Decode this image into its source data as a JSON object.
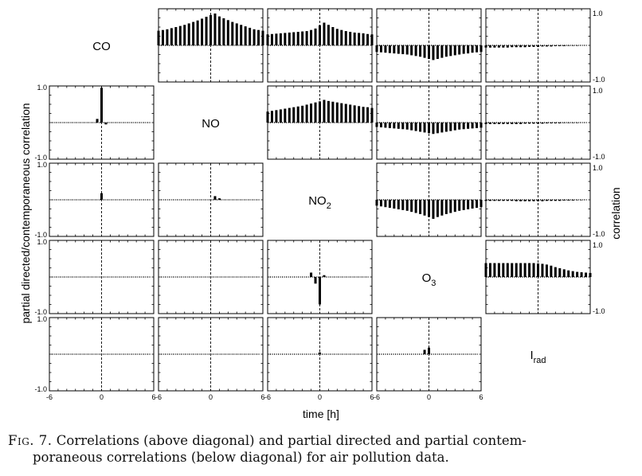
{
  "chart_data": {
    "type": "bar",
    "layout": "5x5 matrix",
    "variables": [
      "CO",
      "NO",
      "NO2",
      "O3",
      "Irad"
    ],
    "xlabel": "time [h]",
    "ylabel_left": "partial directed/contemporaneous correlation",
    "ylabel_right": "correlation",
    "xlim": [
      -6,
      6
    ],
    "ylim": [
      -1.0,
      1.0
    ],
    "x_tick_labels": [
      "-6",
      "0",
      "6"
    ],
    "y_tick_labels": [
      "1.0",
      "-1.0"
    ],
    "upper_panels": [
      {
        "row": 0,
        "col": 1,
        "values": [
          0.4,
          0.42,
          0.44,
          0.47,
          0.5,
          0.53,
          0.56,
          0.6,
          0.64,
          0.68,
          0.73,
          0.78,
          0.83,
          0.87,
          0.79,
          0.74,
          0.69,
          0.64,
          0.6,
          0.56,
          0.52,
          0.48,
          0.44,
          0.42,
          0.4
        ]
      },
      {
        "row": 0,
        "col": 2,
        "values": [
          0.3,
          0.31,
          0.32,
          0.33,
          0.34,
          0.35,
          0.36,
          0.37,
          0.38,
          0.39,
          0.42,
          0.46,
          0.55,
          0.62,
          0.56,
          0.5,
          0.45,
          0.42,
          0.39,
          0.37,
          0.35,
          0.34,
          0.33,
          0.31,
          0.3
        ]
      },
      {
        "row": 0,
        "col": 3,
        "values": [
          -0.18,
          -0.19,
          -0.2,
          -0.21,
          -0.22,
          -0.23,
          -0.24,
          -0.25,
          -0.27,
          -0.29,
          -0.31,
          -0.34,
          -0.37,
          -0.4,
          -0.37,
          -0.34,
          -0.31,
          -0.29,
          -0.27,
          -0.25,
          -0.23,
          -0.22,
          -0.2,
          -0.19,
          -0.18
        ]
      },
      {
        "row": 0,
        "col": 4,
        "values": [
          -0.06,
          -0.06,
          -0.06,
          -0.06,
          -0.06,
          -0.06,
          -0.05,
          -0.05,
          -0.05,
          -0.05,
          -0.04,
          -0.04,
          -0.04,
          -0.03,
          -0.03,
          -0.03,
          -0.02,
          -0.02,
          -0.02,
          -0.01,
          -0.01,
          -0.01,
          0,
          0,
          0
        ]
      },
      {
        "row": 1,
        "col": 2,
        "values": [
          0.3,
          0.32,
          0.34,
          0.36,
          0.38,
          0.4,
          0.42,
          0.44,
          0.46,
          0.49,
          0.52,
          0.55,
          0.58,
          0.62,
          0.59,
          0.57,
          0.55,
          0.53,
          0.51,
          0.49,
          0.47,
          0.45,
          0.43,
          0.42,
          0.4
        ]
      },
      {
        "row": 1,
        "col": 3,
        "values": [
          -0.12,
          -0.13,
          -0.14,
          -0.15,
          -0.16,
          -0.17,
          -0.18,
          -0.19,
          -0.21,
          -0.23,
          -0.25,
          -0.27,
          -0.29,
          -0.31,
          -0.29,
          -0.27,
          -0.25,
          -0.23,
          -0.21,
          -0.19,
          -0.18,
          -0.17,
          -0.16,
          -0.15,
          -0.14
        ]
      },
      {
        "row": 1,
        "col": 4,
        "values": [
          -0.04,
          -0.04,
          -0.04,
          -0.04,
          -0.04,
          -0.04,
          -0.04,
          -0.04,
          -0.04,
          -0.03,
          -0.03,
          -0.03,
          -0.03,
          -0.03,
          -0.02,
          -0.02,
          -0.02,
          -0.02,
          -0.01,
          -0.01,
          -0.01,
          -0.01,
          0,
          0,
          0
        ]
      },
      {
        "row": 2,
        "col": 3,
        "values": [
          -0.16,
          -0.18,
          -0.2,
          -0.22,
          -0.24,
          -0.26,
          -0.28,
          -0.3,
          -0.33,
          -0.36,
          -0.39,
          -0.43,
          -0.47,
          -0.52,
          -0.47,
          -0.43,
          -0.39,
          -0.36,
          -0.33,
          -0.3,
          -0.28,
          -0.26,
          -0.24,
          -0.22,
          -0.2
        ]
      },
      {
        "row": 2,
        "col": 4,
        "values": [
          -0.03,
          -0.03,
          -0.03,
          -0.03,
          -0.03,
          -0.03,
          -0.03,
          -0.04,
          -0.04,
          -0.04,
          -0.04,
          -0.04,
          -0.04,
          -0.04,
          -0.03,
          -0.03,
          -0.03,
          -0.03,
          -0.02,
          -0.02,
          -0.02,
          -0.01,
          -0.01,
          0,
          0
        ]
      },
      {
        "row": 3,
        "col": 4,
        "values": [
          0.38,
          0.38,
          0.38,
          0.38,
          0.38,
          0.38,
          0.38,
          0.38,
          0.38,
          0.38,
          0.38,
          0.38,
          0.37,
          0.36,
          0.34,
          0.31,
          0.27,
          0.24,
          0.21,
          0.18,
          0.16,
          0.14,
          0.13,
          0.12,
          0.11
        ]
      }
    ],
    "lower_panels": [
      {
        "row": 1,
        "col": 0,
        "values": [
          0,
          0,
          0,
          0,
          0,
          0,
          0,
          0,
          0,
          0,
          0,
          0.1,
          0.95,
          -0.05,
          0,
          0,
          0,
          0,
          0,
          0,
          0,
          0,
          0,
          0,
          0
        ]
      },
      {
        "row": 2,
        "col": 0,
        "values": [
          0,
          0,
          0,
          0,
          0,
          0,
          0,
          0,
          0,
          0,
          0,
          0,
          0.18,
          0,
          0,
          0,
          0,
          0,
          0,
          0,
          0,
          0,
          0,
          0,
          0
        ]
      },
      {
        "row": 2,
        "col": 1,
        "values": [
          0,
          0,
          0,
          0,
          0,
          0,
          0,
          0,
          0,
          0,
          0,
          0,
          0,
          0.1,
          0.04,
          0,
          0,
          0,
          0,
          0,
          0,
          0,
          0,
          0,
          0
        ]
      },
      {
        "row": 3,
        "col": 0,
        "values": [
          0,
          0,
          0,
          0,
          0,
          0,
          0,
          0,
          0,
          0,
          0,
          0,
          0,
          0,
          0,
          0,
          0,
          0,
          0,
          0,
          0,
          0,
          0,
          0,
          0
        ]
      },
      {
        "row": 3,
        "col": 1,
        "values": [
          0,
          0,
          0,
          0,
          0,
          0,
          0,
          0,
          0,
          0,
          0,
          0,
          0,
          0,
          0,
          0,
          0,
          0,
          0,
          0,
          0,
          0,
          0,
          0,
          0
        ]
      },
      {
        "row": 3,
        "col": 2,
        "values": [
          0,
          0,
          0,
          0,
          0,
          0,
          0,
          0,
          0,
          0,
          0.12,
          -0.18,
          -0.75,
          0.05,
          0,
          0,
          0,
          0,
          0,
          0,
          0,
          0,
          0,
          0,
          0
        ]
      },
      {
        "row": 4,
        "col": 0,
        "values": [
          0,
          0,
          0,
          0,
          0,
          0,
          0,
          0,
          0,
          0,
          0,
          0,
          0,
          0,
          0,
          0,
          0,
          0,
          0,
          0,
          0,
          0,
          0,
          0,
          0
        ]
      },
      {
        "row": 4,
        "col": 1,
        "values": [
          0,
          0,
          0,
          0,
          0,
          0,
          0,
          0,
          0,
          0,
          0,
          0,
          0,
          0,
          0,
          0,
          0,
          0,
          0,
          0,
          0,
          0,
          0,
          0,
          0
        ]
      },
      {
        "row": 4,
        "col": 2,
        "values": [
          0,
          0,
          0,
          0,
          0,
          0,
          0,
          0,
          0,
          0,
          0,
          0,
          0.05,
          0,
          0,
          0,
          0,
          0,
          0,
          0,
          0,
          0,
          0,
          0,
          0
        ]
      },
      {
        "row": 4,
        "col": 3,
        "values": [
          0,
          0,
          0,
          0,
          0,
          0,
          0,
          0,
          0,
          0,
          0,
          0.12,
          0.18,
          0,
          0,
          0,
          0,
          0,
          0,
          0,
          0,
          0,
          0,
          0,
          0
        ]
      }
    ]
  },
  "diagonal_labels": [
    {
      "text": "CO",
      "sub": ""
    },
    {
      "text": "NO",
      "sub": ""
    },
    {
      "text": "NO",
      "sub": "2"
    },
    {
      "text": "O",
      "sub": "3"
    },
    {
      "text": "I",
      "sub": "rad"
    }
  ],
  "caption": {
    "fig_label": "Fig. 7.",
    "line1": "Correlations (above diagonal) and partial directed and partial contem-",
    "line2": "poraneous correlations (below diagonal) for air pollution data."
  }
}
